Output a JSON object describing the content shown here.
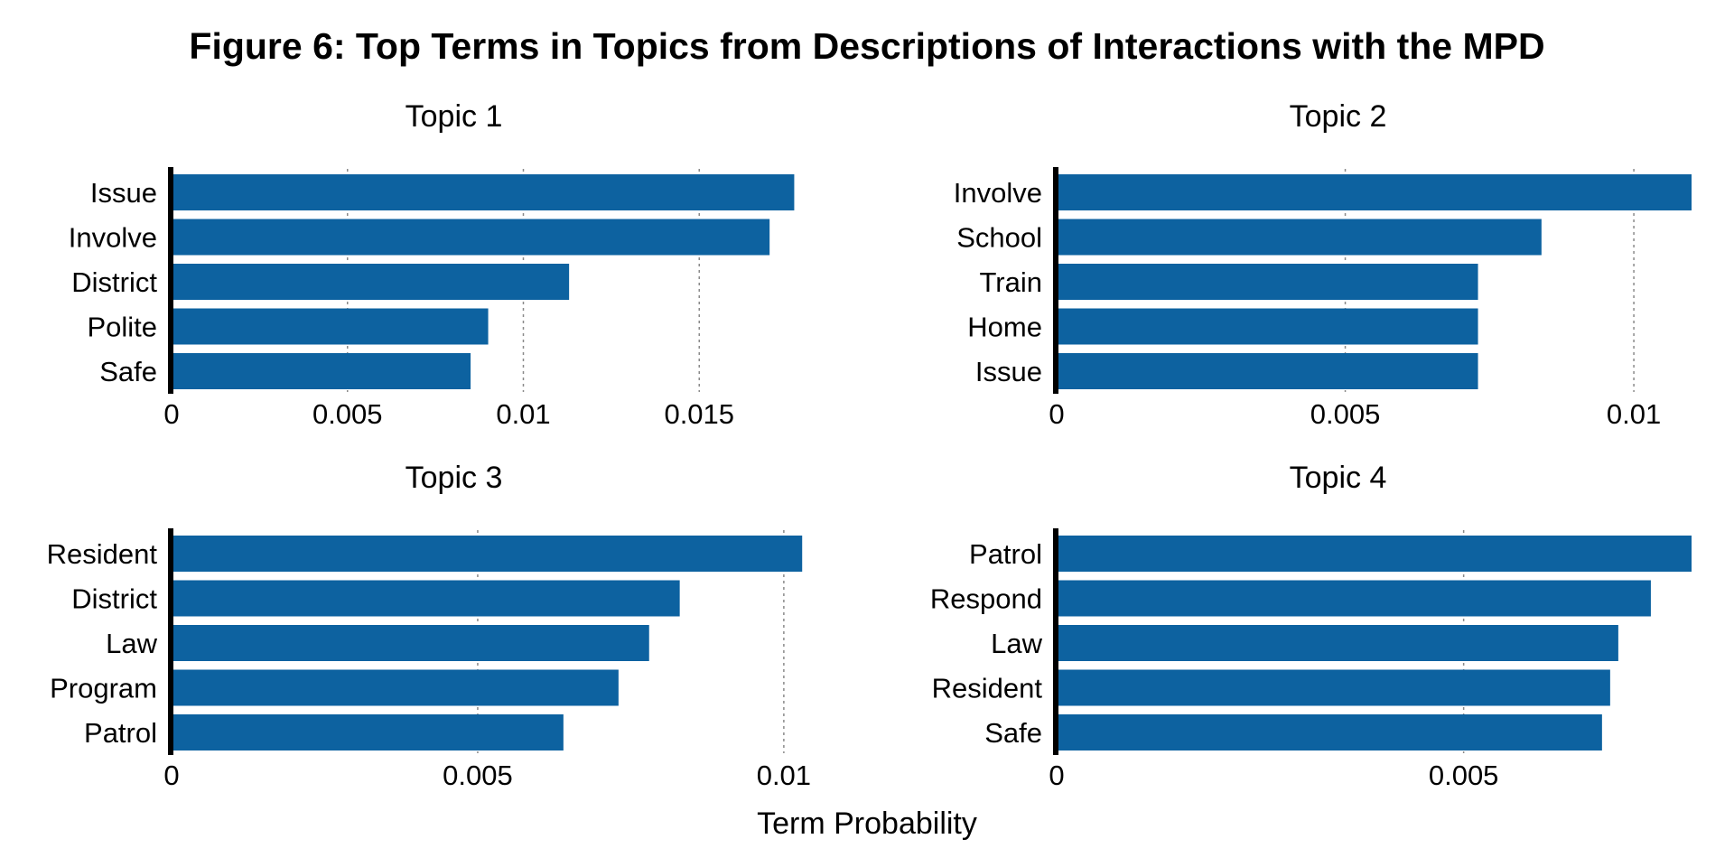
{
  "title": "Figure 6: Top Terms in Topics from Descriptions of Interactions with the MPD",
  "xlabel": "Term Probability",
  "colors": {
    "bar": "#0d62a0",
    "axis": "#000000",
    "grid": "#8a8a8a"
  },
  "chart_data": [
    {
      "type": "bar",
      "orientation": "horizontal",
      "title": "Topic 1",
      "categories": [
        "Issue",
        "Involve",
        "District",
        "Polite",
        "Safe"
      ],
      "values": [
        0.0177,
        0.017,
        0.0113,
        0.009,
        0.0085
      ],
      "xlim": [
        0,
        0.0181
      ],
      "xticks": [
        0,
        0.005,
        0.01,
        0.015
      ],
      "xtick_labels": [
        "0",
        "0.005",
        "0.01",
        "0.015"
      ],
      "grid": "vertical dotted"
    },
    {
      "type": "bar",
      "orientation": "horizontal",
      "title": "Topic 2",
      "categories": [
        "Involve",
        "School",
        "Train",
        "Home",
        "Issue"
      ],
      "values": [
        0.011,
        0.0084,
        0.0073,
        0.0073,
        0.0073
      ],
      "xlim": [
        0,
        0.011
      ],
      "xticks": [
        0,
        0.005,
        0.01
      ],
      "xtick_labels": [
        "0",
        "0.005",
        "0.01"
      ],
      "grid": "vertical dotted"
    },
    {
      "type": "bar",
      "orientation": "horizontal",
      "title": "Topic 3",
      "categories": [
        "Resident",
        "District",
        "Law",
        "Program",
        "Patrol"
      ],
      "values": [
        0.0103,
        0.0083,
        0.0078,
        0.0073,
        0.0064
      ],
      "xlim": [
        0,
        0.0104
      ],
      "xticks": [
        0,
        0.005,
        0.01
      ],
      "xtick_labels": [
        "0",
        "0.005",
        "0.01"
      ],
      "grid": "vertical dotted"
    },
    {
      "type": "bar",
      "orientation": "horizontal",
      "title": "Topic 4",
      "categories": [
        "Patrol",
        "Respond",
        "Law",
        "Resident",
        "Safe"
      ],
      "values": [
        0.0078,
        0.0073,
        0.0069,
        0.0068,
        0.0067
      ],
      "xlim": [
        0,
        0.0078
      ],
      "xticks": [
        0,
        0.005
      ],
      "xtick_labels": [
        "0",
        "0.005"
      ],
      "grid": "vertical dotted"
    }
  ]
}
